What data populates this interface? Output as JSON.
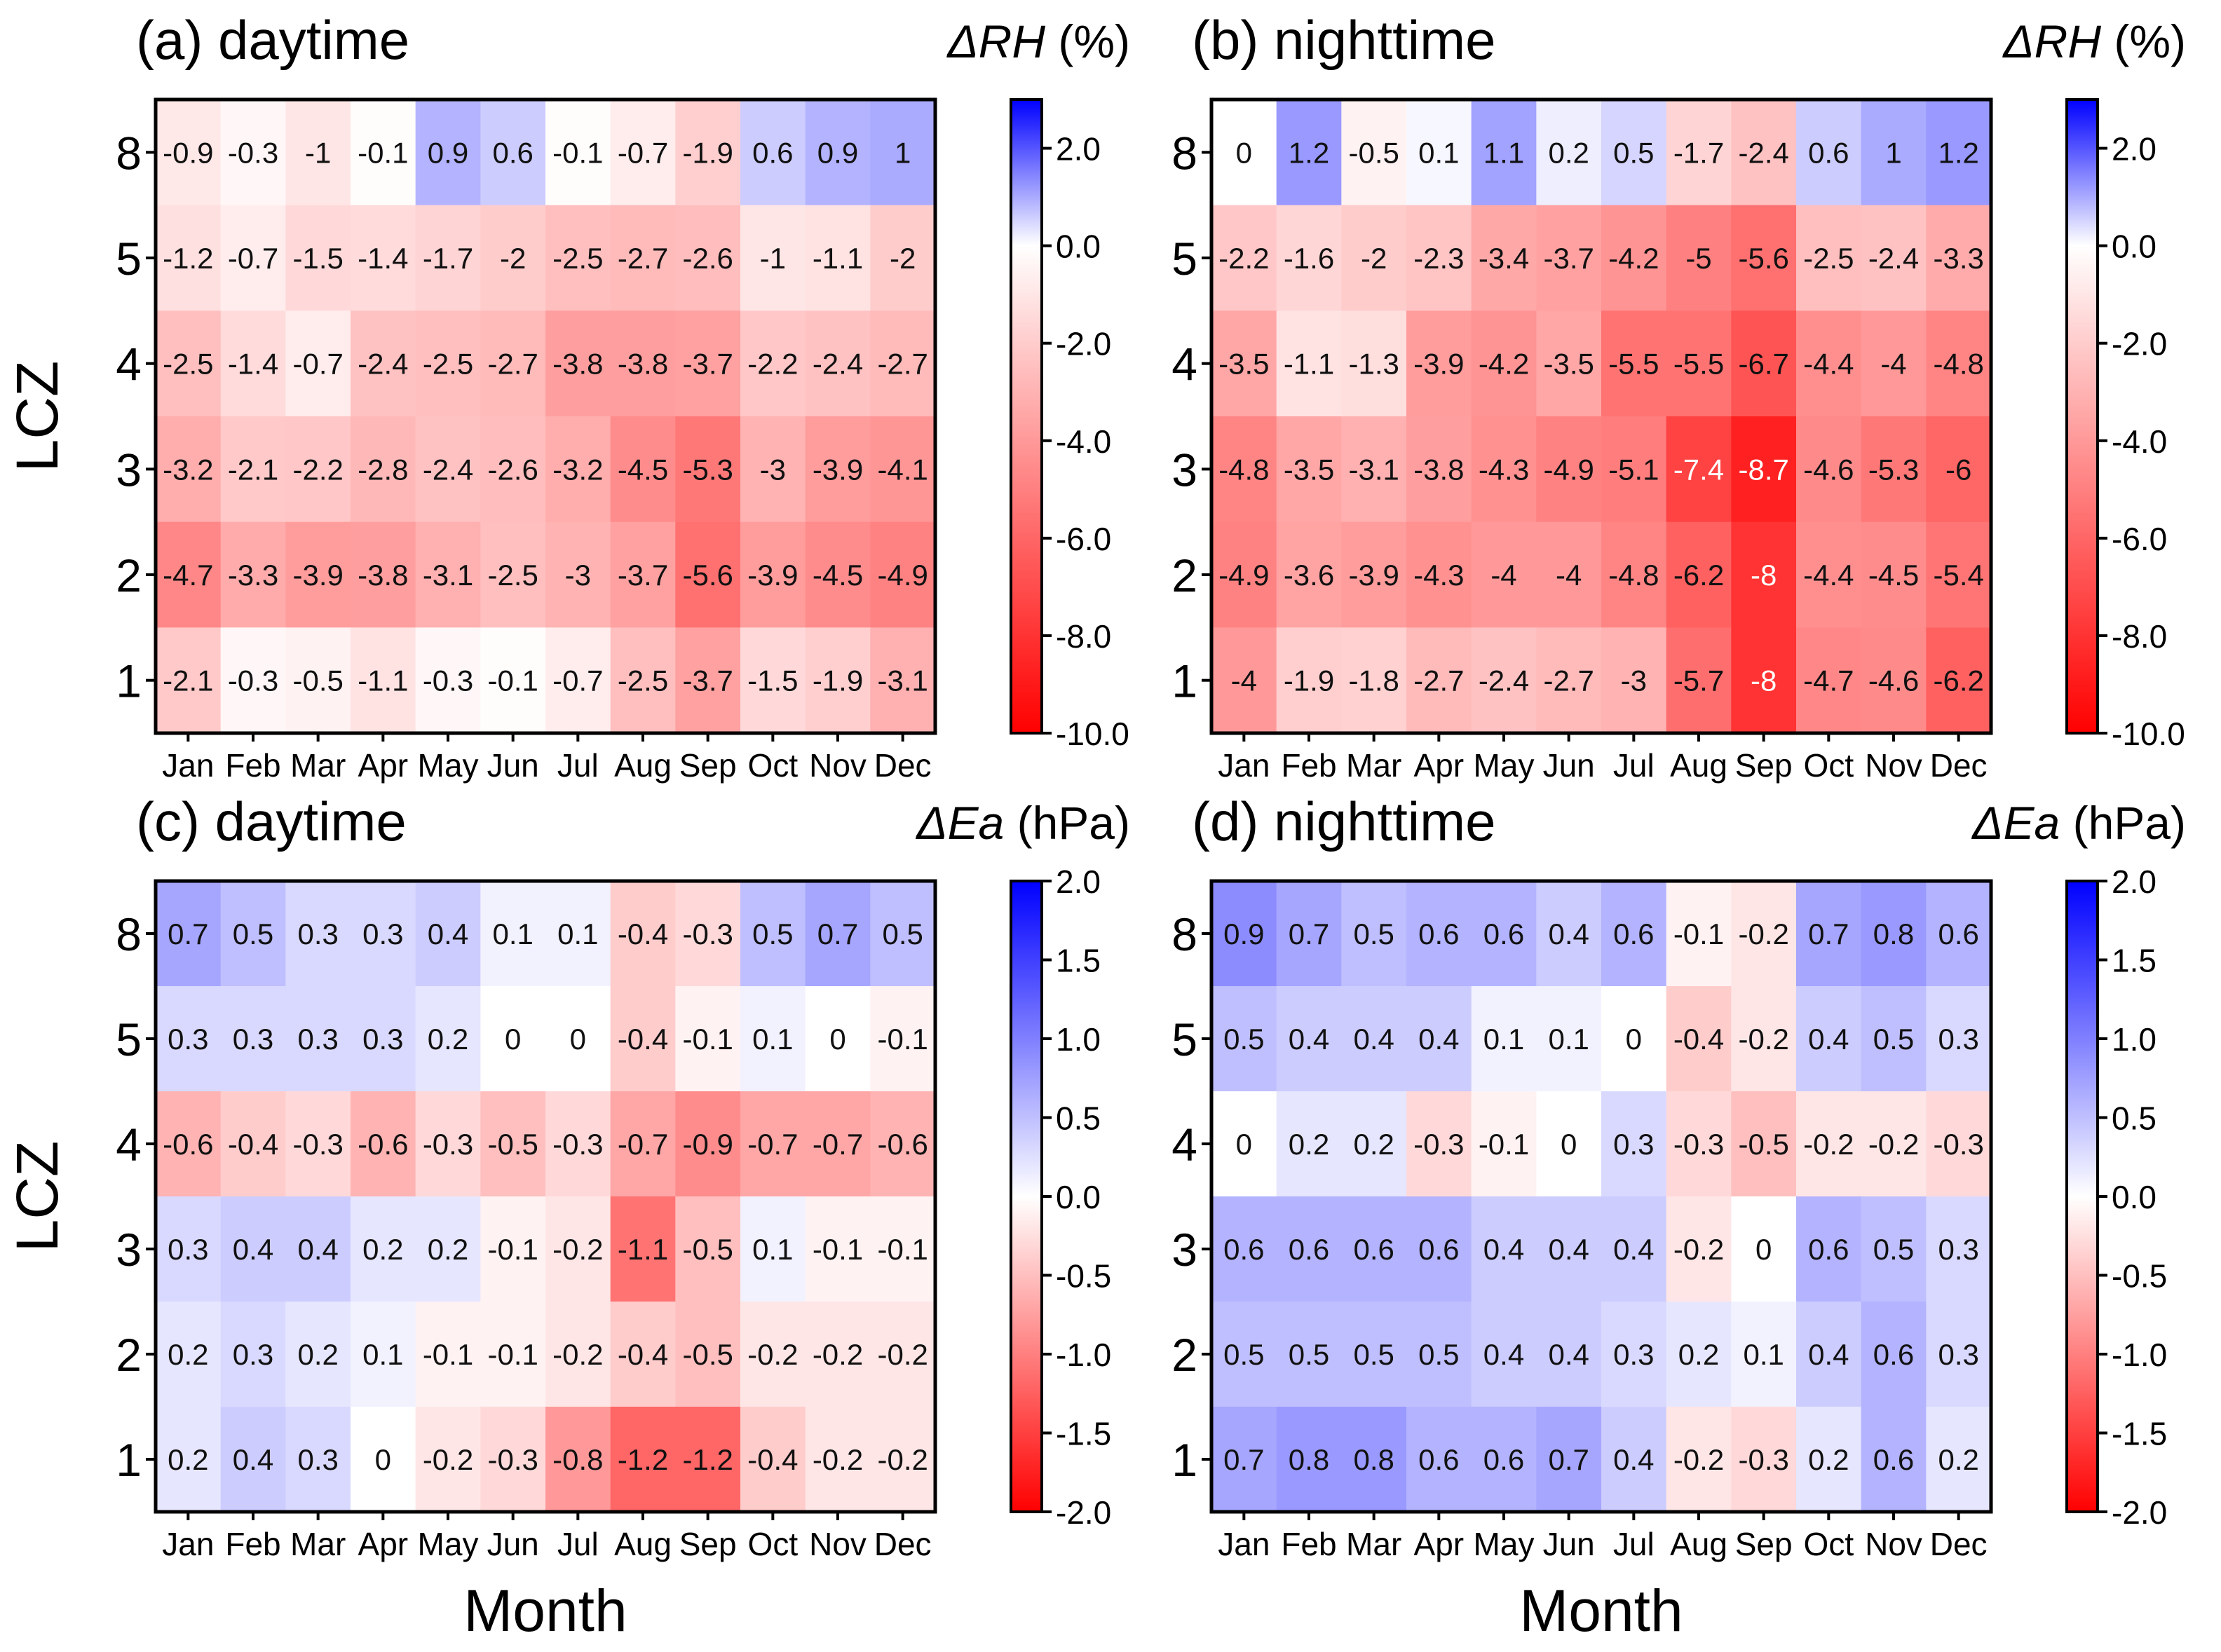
{
  "chart_data": [
    {
      "type": "heatmap",
      "title": "(a) daytime",
      "colorbar_label": "ΔRH (%)",
      "colorbar_label_var": "ΔRH",
      "colorbar_label_unit": " (%)",
      "xlabel": "",
      "ylabel": "LCZ",
      "x_categories": [
        "Jan",
        "Feb",
        "Mar",
        "Apr",
        "May",
        "Jun",
        "Jul",
        "Aug",
        "Sep",
        "Oct",
        "Nov",
        "Dec"
      ],
      "y_categories": [
        "8",
        "5",
        "4",
        "3",
        "2",
        "1"
      ],
      "values": [
        [
          -0.9,
          -0.3,
          -1,
          -0.1,
          0.9,
          0.6,
          -0.1,
          -0.7,
          -1.9,
          0.6,
          0.9,
          1
        ],
        [
          -1.2,
          -0.7,
          -1.5,
          -1.4,
          -1.7,
          -2,
          -2.5,
          -2.7,
          -2.6,
          -1,
          -1.1,
          -2
        ],
        [
          -2.5,
          -1.4,
          -0.7,
          -2.4,
          -2.5,
          -2.7,
          -3.8,
          -3.8,
          -3.7,
          -2.2,
          -2.4,
          -2.7
        ],
        [
          -3.2,
          -2.1,
          -2.2,
          -2.8,
          -2.4,
          -2.6,
          -3.2,
          -4.5,
          -5.3,
          -3,
          -3.9,
          -4.1
        ],
        [
          -4.7,
          -3.3,
          -3.9,
          -3.8,
          -3.1,
          -2.5,
          -3,
          -3.7,
          -5.6,
          -3.9,
          -4.5,
          -4.9
        ],
        [
          -2.1,
          -0.3,
          -0.5,
          -1.1,
          -0.3,
          -0.1,
          -0.7,
          -2.5,
          -3.7,
          -1.5,
          -1.9,
          -3.1
        ]
      ],
      "vmin": -10,
      "vmax": 3,
      "colorbar_ticks": [
        "2.0",
        "0.0",
        "-2.0",
        "-4.0",
        "-6.0",
        "-8.0",
        "-10.0"
      ]
    },
    {
      "type": "heatmap",
      "title": "(b) nighttime",
      "colorbar_label": "ΔRH (%)",
      "colorbar_label_var": "ΔRH",
      "colorbar_label_unit": " (%)",
      "xlabel": "",
      "ylabel": "",
      "x_categories": [
        "Jan",
        "Feb",
        "Mar",
        "Apr",
        "May",
        "Jun",
        "Jul",
        "Aug",
        "Sep",
        "Oct",
        "Nov",
        "Dec"
      ],
      "y_categories": [
        "8",
        "5",
        "4",
        "3",
        "2",
        "1"
      ],
      "values": [
        [
          0,
          1.2,
          -0.5,
          0.1,
          1.1,
          0.2,
          0.5,
          -1.7,
          -2.4,
          0.6,
          1,
          1.2
        ],
        [
          -2.2,
          -1.6,
          -2,
          -2.3,
          -3.4,
          -3.7,
          -4.2,
          -5,
          -5.6,
          -2.5,
          -2.4,
          -3.3
        ],
        [
          -3.5,
          -1.1,
          -1.3,
          -3.9,
          -4.2,
          -3.5,
          -5.5,
          -5.5,
          -6.7,
          -4.4,
          -4,
          -4.8
        ],
        [
          -4.8,
          -3.5,
          -3.1,
          -3.8,
          -4.3,
          -4.9,
          -5.1,
          -7.4,
          -8.7,
          -4.6,
          -5.3,
          -6
        ],
        [
          -4.9,
          -3.6,
          -3.9,
          -4.3,
          -4,
          -4,
          -4.8,
          -6.2,
          -8,
          -4.4,
          -4.5,
          -5.4
        ],
        [
          -4,
          -1.9,
          -1.8,
          -2.7,
          -2.4,
          -2.7,
          -3,
          -5.7,
          -8,
          -4.7,
          -4.6,
          -6.2
        ]
      ],
      "vmin": -10,
      "vmax": 3,
      "colorbar_ticks": [
        "2.0",
        "0.0",
        "-2.0",
        "-4.0",
        "-6.0",
        "-8.0",
        "-10.0"
      ]
    },
    {
      "type": "heatmap",
      "title": "(c) daytime",
      "colorbar_label": "ΔEa (hPa)",
      "colorbar_label_var": "ΔEa",
      "colorbar_label_unit": " (hPa)",
      "xlabel": "Month",
      "ylabel": "LCZ",
      "x_categories": [
        "Jan",
        "Feb",
        "Mar",
        "Apr",
        "May",
        "Jun",
        "Jul",
        "Aug",
        "Sep",
        "Oct",
        "Nov",
        "Dec"
      ],
      "y_categories": [
        "8",
        "5",
        "4",
        "3",
        "2",
        "1"
      ],
      "values": [
        [
          0.7,
          0.5,
          0.3,
          0.3,
          0.4,
          0.1,
          0.1,
          -0.4,
          -0.3,
          0.5,
          0.7,
          0.5
        ],
        [
          0.3,
          0.3,
          0.3,
          0.3,
          0.2,
          0,
          0,
          -0.4,
          -0.1,
          0.1,
          0,
          -0.1
        ],
        [
          -0.6,
          -0.4,
          -0.3,
          -0.6,
          -0.3,
          -0.5,
          -0.3,
          -0.7,
          -0.9,
          -0.7,
          -0.7,
          -0.6
        ],
        [
          0.3,
          0.4,
          0.4,
          0.2,
          0.2,
          -0.1,
          -0.2,
          -1.1,
          -0.5,
          0.1,
          -0.1,
          -0.1
        ],
        [
          0.2,
          0.3,
          0.2,
          0.1,
          -0.1,
          -0.1,
          -0.2,
          -0.4,
          -0.5,
          -0.2,
          -0.2,
          -0.2
        ],
        [
          0.2,
          0.4,
          0.3,
          0,
          -0.2,
          -0.3,
          -0.8,
          -1.2,
          -1.2,
          -0.4,
          -0.2,
          -0.2
        ]
      ],
      "vmin": -2,
      "vmax": 2,
      "colorbar_ticks": [
        "2.0",
        "1.5",
        "1.0",
        "0.5",
        "0.0",
        "-0.5",
        "-1.0",
        "-1.5",
        "-2.0"
      ]
    },
    {
      "type": "heatmap",
      "title": "(d) nighttime",
      "colorbar_label": "ΔEa (hPa)",
      "colorbar_label_var": "ΔEa",
      "colorbar_label_unit": " (hPa)",
      "xlabel": "Month",
      "ylabel": "",
      "x_categories": [
        "Jan",
        "Feb",
        "Mar",
        "Apr",
        "May",
        "Jun",
        "Jul",
        "Aug",
        "Sep",
        "Oct",
        "Nov",
        "Dec"
      ],
      "y_categories": [
        "8",
        "5",
        "4",
        "3",
        "2",
        "1"
      ],
      "values": [
        [
          0.9,
          0.7,
          0.5,
          0.6,
          0.6,
          0.4,
          0.6,
          -0.1,
          -0.2,
          0.7,
          0.8,
          0.6
        ],
        [
          0.5,
          0.4,
          0.4,
          0.4,
          0.1,
          0.1,
          0,
          -0.4,
          -0.2,
          0.4,
          0.5,
          0.3
        ],
        [
          0,
          0.2,
          0.2,
          -0.3,
          -0.1,
          0,
          0.3,
          -0.3,
          -0.5,
          -0.2,
          -0.2,
          -0.3
        ],
        [
          0.6,
          0.6,
          0.6,
          0.6,
          0.4,
          0.4,
          0.4,
          -0.2,
          0,
          0.6,
          0.5,
          0.3
        ],
        [
          0.5,
          0.5,
          0.5,
          0.5,
          0.4,
          0.4,
          0.3,
          0.2,
          0.1,
          0.4,
          0.6,
          0.3
        ],
        [
          0.7,
          0.8,
          0.8,
          0.6,
          0.6,
          0.7,
          0.4,
          -0.2,
          -0.3,
          0.2,
          0.6,
          0.2
        ]
      ],
      "vmin": -2,
      "vmax": 2,
      "colorbar_ticks": [
        "2.0",
        "1.5",
        "1.0",
        "0.5",
        "0.0",
        "-0.5",
        "-1.0",
        "-1.5",
        "-2.0"
      ]
    }
  ]
}
